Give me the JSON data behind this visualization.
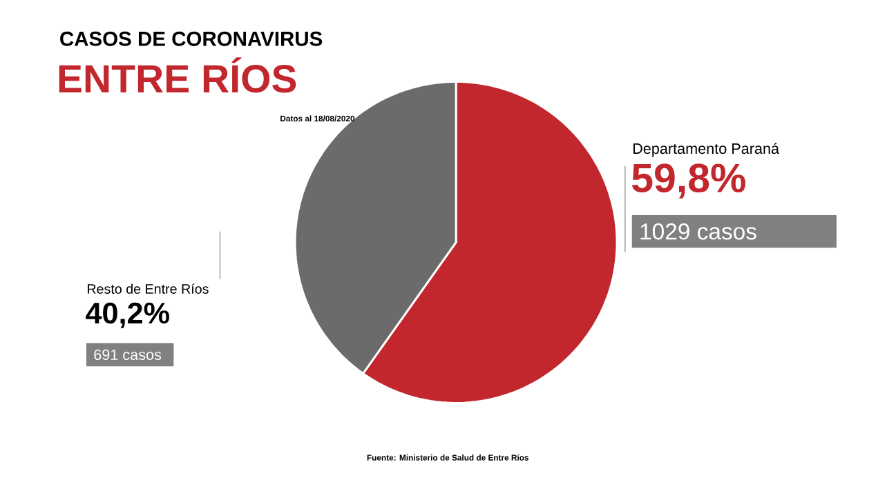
{
  "chart_data": {
    "type": "pie",
    "title": "CASOS DE CORONAVIRUS",
    "subtitle": "ENTRE RÍOS",
    "categories": [
      "Departamento Paraná",
      "Resto de Entre Ríos"
    ],
    "values": [
      59.8,
      40.2
    ],
    "colors": [
      "#c1272d",
      "#6b6b6b"
    ],
    "value_labels": [
      "59,8%",
      "40,2%"
    ],
    "legend": false,
    "annotations": [
      "Datos al 18/08/2020",
      "1029 casos",
      "691 casos",
      "Fuente: Ministerio de Salud de Entre Ríos"
    ]
  }
}
